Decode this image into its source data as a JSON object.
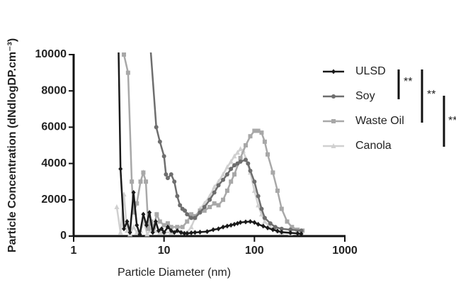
{
  "chart_data": {
    "type": "line",
    "ylabel": "Particle Concentration (dNdlogDP.cm⁻³)",
    "xlabel": "Particle Diameter (nm)",
    "xscale": "log",
    "xlim": [
      1,
      1000
    ],
    "xticks": [
      1,
      10,
      100,
      1000
    ],
    "ylim": [
      0,
      10000
    ],
    "yticks": [
      0,
      2000,
      4000,
      6000,
      8000,
      10000
    ],
    "series": [
      {
        "name": "ULSD",
        "color": "#1a1a1a",
        "marker": "diamond",
        "x": [
          3.1,
          3.3,
          3.6,
          3.9,
          4.2,
          4.6,
          5.0,
          5.4,
          5.9,
          6.4,
          6.9,
          7.5,
          8.1,
          8.7,
          9.4,
          10,
          11,
          12,
          13,
          14,
          15.4,
          16.8,
          18,
          20,
          22,
          25,
          30,
          35,
          40,
          45,
          50,
          55,
          60,
          65,
          70,
          80,
          90,
          100,
          110,
          125,
          140,
          160,
          180,
          200,
          250,
          300,
          330
        ],
        "values": [
          12000,
          3700,
          400,
          800,
          200,
          2400,
          600,
          100,
          1200,
          600,
          1300,
          200,
          800,
          300,
          400,
          200,
          500,
          300,
          200,
          300,
          200,
          150,
          150,
          180,
          200,
          220,
          250,
          350,
          400,
          500,
          550,
          600,
          650,
          700,
          750,
          780,
          800,
          750,
          650,
          550,
          450,
          350,
          280,
          220,
          180,
          150,
          120
        ]
      },
      {
        "name": "Soy",
        "color": "#6e6e6e",
        "marker": "circle",
        "x": [
          6.7,
          8.2,
          9,
          10,
          10.5,
          11,
          12,
          13,
          14,
          15,
          16,
          17,
          18,
          20,
          22,
          25,
          28,
          32,
          36,
          40,
          45,
          50,
          55,
          60,
          65,
          70,
          80,
          85,
          90,
          100,
          110,
          120,
          130,
          150,
          170,
          200,
          250,
          330
        ],
        "values": [
          12000,
          6000,
          5200,
          4400,
          3400,
          3200,
          3400,
          3000,
          2200,
          1700,
          1500,
          1400,
          1200,
          1000,
          1000,
          1300,
          1600,
          2000,
          2400,
          2800,
          3100,
          3400,
          3700,
          3900,
          4000,
          4100,
          4200,
          4000,
          3600,
          3000,
          2200,
          1500,
          1000,
          700,
          500,
          400,
          350,
          300
        ]
      },
      {
        "name": "Waste Oil",
        "color": "#a8a8a8",
        "marker": "square",
        "x": [
          3.6,
          4.0,
          4.4,
          4.6,
          5,
          5.5,
          5.9,
          6.3,
          6.7,
          7.2,
          7.7,
          8.3,
          9,
          10,
          11,
          12,
          14,
          16,
          18,
          20,
          22,
          25,
          28,
          32,
          36,
          40,
          45,
          50,
          55,
          60,
          70,
          80,
          90,
          100,
          110,
          120,
          130,
          140,
          160,
          180,
          200,
          230,
          260,
          300,
          340
        ],
        "values": [
          10000,
          9000,
          3000,
          1300,
          1800,
          3000,
          3500,
          3000,
          400,
          800,
          500,
          1200,
          800,
          600,
          700,
          500,
          500,
          500,
          800,
          1200,
          1100,
          1400,
          1400,
          1600,
          1800,
          1700,
          2000,
          2500,
          3000,
          3400,
          4300,
          5000,
          5500,
          5800,
          5800,
          5700,
          5200,
          4500,
          3500,
          2500,
          1500,
          800,
          500,
          350,
          300
        ]
      },
      {
        "name": "Canola",
        "color": "#d0d0d0",
        "marker": "triangle",
        "x": [
          3,
          3.3,
          3.6,
          3.9,
          4.2,
          4.6,
          5,
          5.5,
          6,
          6.5,
          7,
          7.5,
          8,
          9,
          10,
          12,
          14,
          16,
          18,
          20,
          22,
          25,
          28,
          32,
          36,
          40,
          45,
          50,
          55,
          60,
          65,
          70,
          75,
          80,
          90,
          100,
          110,
          120,
          130,
          150,
          180,
          200,
          250
        ],
        "values": [
          1600,
          200,
          2300,
          300,
          100,
          500,
          200,
          300,
          800,
          100,
          300,
          500,
          300,
          200,
          200,
          200,
          300,
          200,
          200,
          500,
          1000,
          1500,
          1800,
          2200,
          2700,
          3000,
          3400,
          3800,
          4100,
          4400,
          4600,
          4800,
          4700,
          4300,
          3500,
          2500,
          1700,
          1200,
          800,
          500,
          300,
          200,
          150
        ]
      }
    ],
    "annotations": [
      "**",
      "**",
      "**"
    ]
  }
}
